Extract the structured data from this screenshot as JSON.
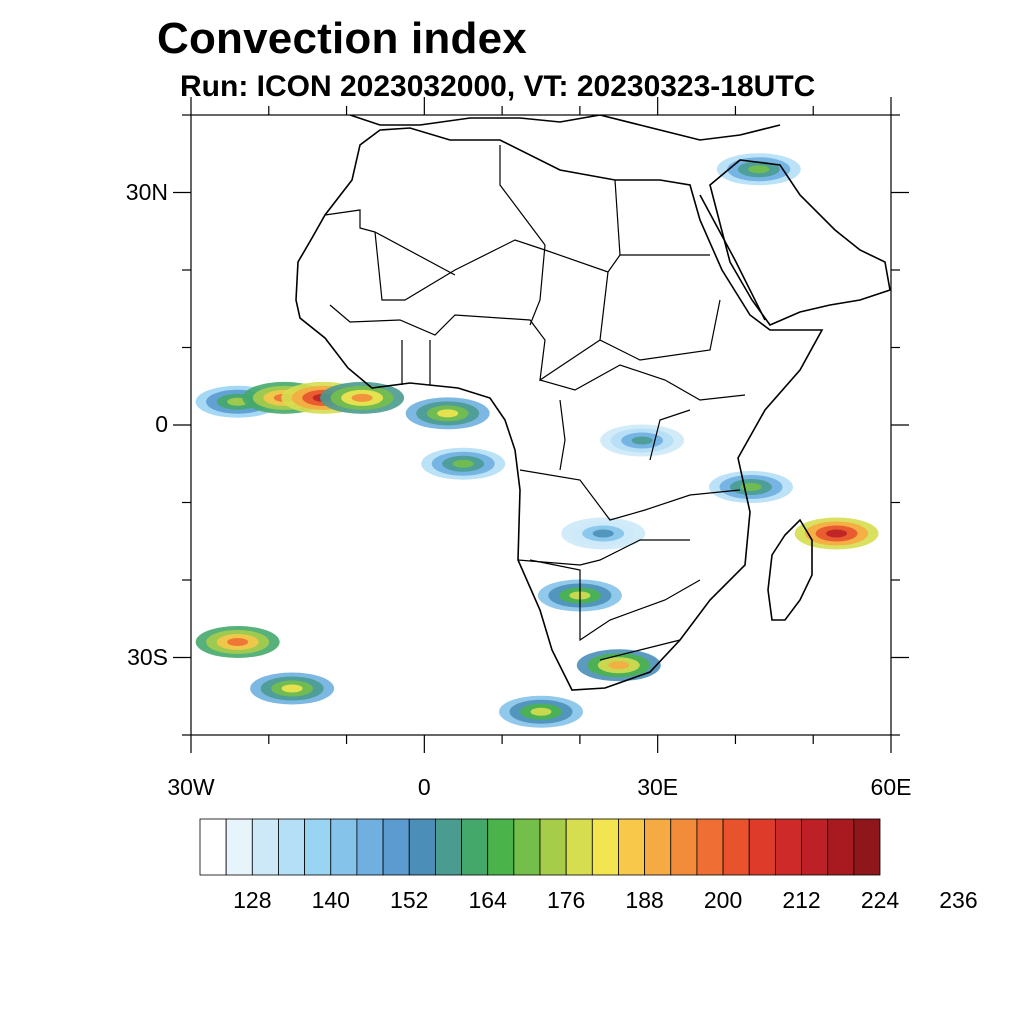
{
  "title": "Convection index",
  "subtitle": "Run: ICON 2023032000,  VT: 20230323-18UTC",
  "axes": {
    "lat_ticks": [
      {
        "value": 30,
        "label": "30N"
      },
      {
        "value": 0,
        "label": "0"
      },
      {
        "value": -30,
        "label": "30S"
      }
    ],
    "lon_ticks": [
      {
        "value": -30,
        "label": "30W"
      },
      {
        "value": 0,
        "label": "0"
      },
      {
        "value": 30,
        "label": "30E"
      },
      {
        "value": 60,
        "label": "60E"
      }
    ],
    "lon_range": [
      -30,
      60
    ],
    "lat_range": [
      -40,
      40
    ]
  },
  "colorbar": {
    "colors": [
      "#ffffff",
      "#e8f4fb",
      "#cde9f8",
      "#b4dff6",
      "#9ad4f3",
      "#85c3ea",
      "#6fb0e0",
      "#5b9bd0",
      "#4b8fb8",
      "#4a9b90",
      "#45a86b",
      "#4ab44a",
      "#74bf4a",
      "#a6cd4a",
      "#d6de50",
      "#f2e550",
      "#f7c84a",
      "#f6aa42",
      "#f28c3a",
      "#ee6e33",
      "#e8532d",
      "#de3b2b",
      "#cf2a2a",
      "#bd2026",
      "#a91a20",
      "#8f161a"
    ],
    "tick_labels": [
      "128",
      "140",
      "152",
      "164",
      "176",
      "188",
      "200",
      "212",
      "224",
      "236"
    ]
  },
  "chart_data": {
    "type": "heatmap",
    "title": "Convection index",
    "subtitle": "Run: ICON 2023032000,  VT: 20230323-18UTC",
    "x_range": [
      -30,
      60
    ],
    "y_range": [
      -40,
      40
    ],
    "levels": [
      128,
      140,
      152,
      164,
      176,
      188,
      200,
      212,
      224,
      236
    ],
    "cells": [
      {
        "lon": -24,
        "lat": 3,
        "value": 165
      },
      {
        "lon": -18,
        "lat": 3.5,
        "value": 190
      },
      {
        "lon": -13,
        "lat": 3.5,
        "value": 205
      },
      {
        "lon": -8,
        "lat": 3.5,
        "value": 185
      },
      {
        "lon": 3,
        "lat": 1.5,
        "value": 175
      },
      {
        "lon": 5,
        "lat": -5,
        "value": 160
      },
      {
        "lon": 20,
        "lat": -22,
        "value": 168
      },
      {
        "lon": 25,
        "lat": -31,
        "value": 180
      },
      {
        "lon": 53,
        "lat": -14,
        "value": 205
      },
      {
        "lon": 42,
        "lat": -8,
        "value": 160
      },
      {
        "lon": 43,
        "lat": 33,
        "value": 160
      },
      {
        "lon": -24,
        "lat": -28,
        "value": 190
      },
      {
        "lon": -17,
        "lat": -34,
        "value": 175
      },
      {
        "lon": 15,
        "lat": -37,
        "value": 170
      },
      {
        "lon": 28,
        "lat": -2,
        "value": 150
      },
      {
        "lon": 23,
        "lat": -14,
        "value": 145
      }
    ]
  }
}
